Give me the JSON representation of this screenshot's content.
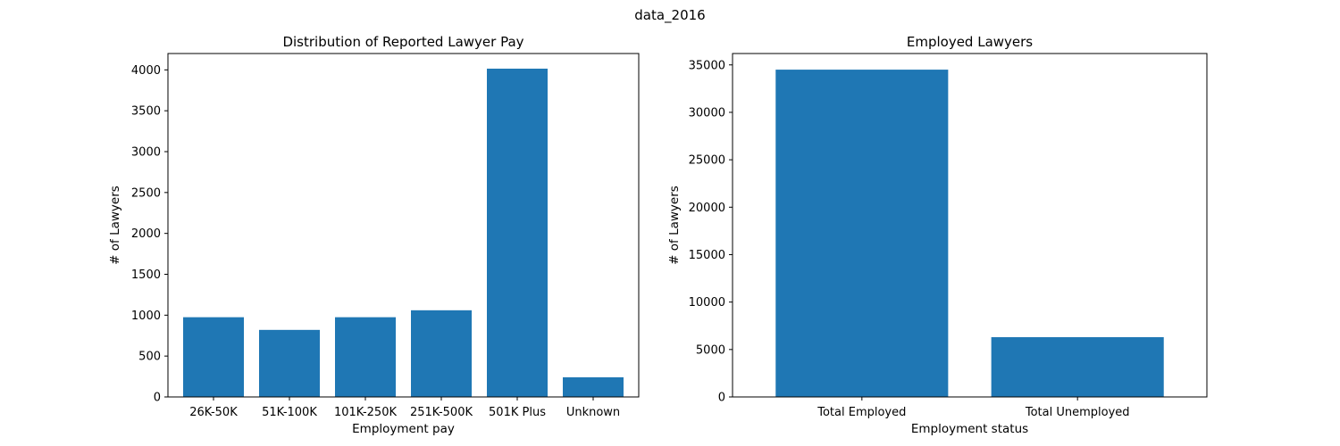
{
  "figure": {
    "suptitle": "data_2016"
  },
  "chart_data": [
    {
      "type": "bar",
      "title": "Distribution of Reported Lawyer Pay",
      "xlabel": "Employment pay",
      "ylabel": "# of Lawyers",
      "categories": [
        "26K-50K",
        "51K-100K",
        "101K-250K",
        "251K-500K",
        "501K Plus",
        "Unknown"
      ],
      "values": [
        975,
        820,
        975,
        1060,
        4015,
        240
      ],
      "ylim": [
        0,
        4200
      ],
      "yticks": [
        0,
        500,
        1000,
        1500,
        2000,
        2500,
        3000,
        3500,
        4000
      ],
      "color": "#1f77b4",
      "grid": false,
      "legend": "none"
    },
    {
      "type": "bar",
      "title": "Employed Lawyers",
      "xlabel": "Employment status",
      "ylabel": "# of Lawyers",
      "categories": [
        "Total Employed",
        "Total Unemployed"
      ],
      "values": [
        34500,
        6300
      ],
      "ylim": [
        0,
        36200
      ],
      "yticks": [
        0,
        5000,
        10000,
        15000,
        20000,
        25000,
        30000,
        35000
      ],
      "color": "#1f77b4",
      "grid": false,
      "legend": "none"
    }
  ]
}
